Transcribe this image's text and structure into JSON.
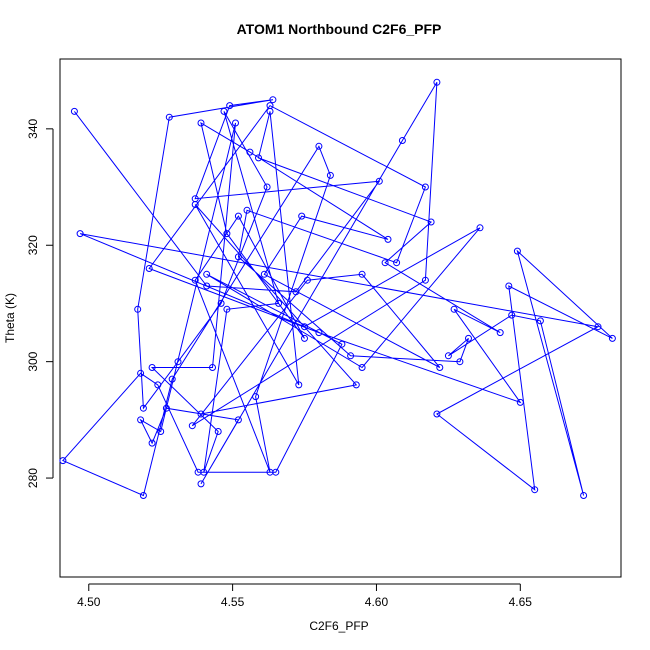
{
  "chart_data": {
    "type": "line",
    "title": "ATOM1 Northbound C2F6_PFP",
    "xlabel": "C2F6_PFP",
    "ylabel": "Theta (K)",
    "xlim": [
      4.49,
      4.685
    ],
    "ylim": [
      263,
      352
    ],
    "xticks": [
      4.5,
      4.55,
      4.6,
      4.65
    ],
    "xtick_labels": [
      "4.50",
      "4.55",
      "4.60",
      "4.65"
    ],
    "yticks": [
      280,
      300,
      320,
      340
    ],
    "ytick_labels": [
      "280",
      "300",
      "320",
      "340"
    ],
    "grid": false,
    "series": [
      {
        "color": "#0000ff",
        "markers": "open-circle",
        "x": [
          4.495,
          4.541,
          4.572,
          4.601,
          4.537,
          4.549,
          4.564,
          4.528,
          4.517,
          4.519,
          4.531,
          4.546,
          4.562,
          4.547,
          4.566,
          4.548,
          4.54,
          4.545,
          4.522,
          4.543,
          4.551,
          4.525,
          4.518,
          4.522,
          4.527,
          4.552,
          4.539,
          4.609,
          4.621,
          4.617,
          4.536,
          4.576,
          4.595,
          4.622,
          4.561,
          4.574,
          4.604,
          4.556,
          4.539,
          4.548,
          4.575,
          4.552,
          4.537,
          4.563,
          4.558,
          4.584,
          4.58,
          4.529,
          4.519,
          4.491,
          4.518,
          4.524,
          4.538,
          4.565,
          4.588,
          4.541,
          4.595,
          4.636,
          4.575,
          4.497,
          4.677,
          4.621,
          4.655,
          4.646,
          4.682,
          4.649,
          4.672,
          4.657,
          4.647,
          4.625,
          4.632,
          4.629,
          4.591,
          4.552,
          4.555,
          4.607,
          4.617,
          4.563,
          4.521,
          4.58,
          4.65,
          4.627,
          4.643,
          4.603,
          4.619,
          4.559,
          4.563,
          4.573,
          4.537,
          4.593,
          4.539
        ],
        "y": [
          343,
          313,
          312,
          331,
          328,
          344,
          345,
          342,
          309,
          292,
          300,
          310,
          330,
          343,
          310,
          309,
          281,
          288,
          299,
          299,
          341,
          288,
          290,
          286,
          292,
          290,
          279,
          338,
          348,
          314,
          289,
          314,
          315,
          299,
          315,
          325,
          321,
          336,
          341,
          322,
          304,
          325,
          314,
          281,
          294,
          332,
          337,
          297,
          277,
          283,
          298,
          296,
          281,
          281,
          303,
          315,
          299,
          323,
          306,
          322,
          306,
          291,
          278,
          313,
          304,
          319,
          277,
          307,
          308,
          301,
          304,
          300,
          301,
          318,
          326,
          317,
          330,
          344,
          316,
          305,
          293,
          309,
          305,
          317,
          324,
          335,
          343,
          296,
          327,
          296,
          291
        ]
      }
    ]
  }
}
